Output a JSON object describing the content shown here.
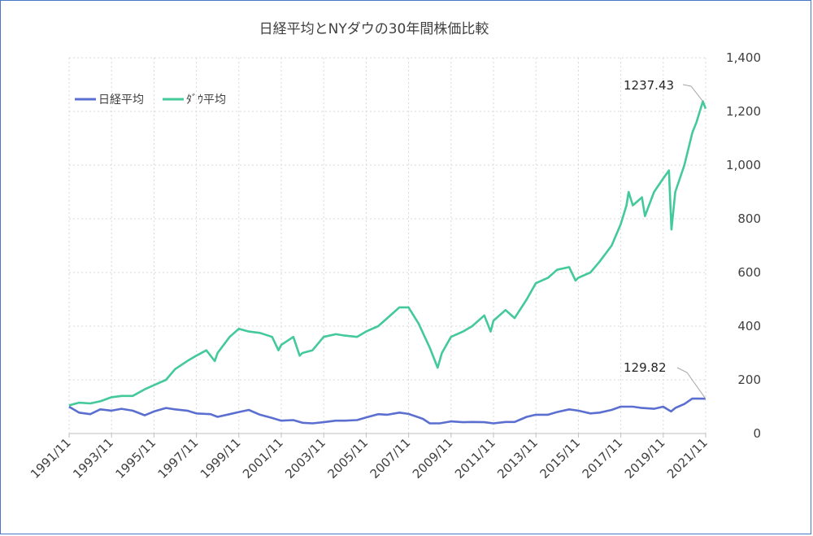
{
  "chart_data": {
    "type": "line",
    "title": "日経平均とNYダウの30年間株価比較",
    "xlabel": "",
    "ylabel": "",
    "ylim": [
      0,
      1400
    ],
    "y_ticks": [
      "0",
      "200",
      "400",
      "600",
      "800",
      "1,000",
      "1,200",
      "1,400"
    ],
    "y_axis_side": "right",
    "x_ticks": [
      "1991/11",
      "1993/11",
      "1995/11",
      "1997/11",
      "1999/11",
      "2001/11",
      "2003/11",
      "2005/11",
      "2007/11",
      "2009/11",
      "2011/11",
      "2013/11",
      "2015/11",
      "2017/11",
      "2019/11",
      "2021/11"
    ],
    "grid": true,
    "legend": "top-left",
    "series": [
      {
        "name": "日経平均",
        "color": "#5b6fd1",
        "x": [
          1991.83,
          1992.3,
          1992.83,
          1993.3,
          1993.83,
          1994.3,
          1994.83,
          1995.4,
          1995.83,
          1996.4,
          1996.83,
          1997.4,
          1997.83,
          1998.5,
          1998.83,
          1999.4,
          1999.83,
          2000.3,
          2000.83,
          2001.4,
          2001.83,
          2002.4,
          2002.83,
          2003.3,
          2003.83,
          2004.4,
          2004.83,
          2005.4,
          2005.83,
          2006.4,
          2006.83,
          2007.4,
          2007.83,
          2008.5,
          2008.83,
          2009.3,
          2009.83,
          2010.4,
          2010.83,
          2011.4,
          2011.83,
          2012.4,
          2012.83,
          2013.4,
          2013.83,
          2014.4,
          2014.83,
          2015.4,
          2015.83,
          2016.4,
          2016.83,
          2017.4,
          2017.83,
          2018.4,
          2018.83,
          2019.4,
          2019.83,
          2020.2,
          2020.4,
          2020.83,
          2021.2,
          2021.4,
          2021.83
        ],
        "values": [
          100,
          78,
          72,
          90,
          85,
          92,
          85,
          68,
          82,
          95,
          90,
          85,
          75,
          72,
          62,
          72,
          80,
          88,
          70,
          58,
          48,
          50,
          40,
          38,
          42,
          48,
          48,
          50,
          60,
          72,
          70,
          78,
          73,
          55,
          38,
          38,
          45,
          42,
          43,
          42,
          38,
          43,
          43,
          62,
          70,
          70,
          80,
          90,
          85,
          75,
          78,
          88,
          100,
          100,
          95,
          92,
          100,
          82,
          95,
          110,
          130,
          130,
          129.82
        ]
      },
      {
        "name": "ﾀﾞｳ平均",
        "color": "#43c99a",
        "x": [
          1991.83,
          1992.3,
          1992.83,
          1993.3,
          1993.83,
          1994.3,
          1994.83,
          1995.4,
          1995.83,
          1996.4,
          1996.83,
          1997.4,
          1997.83,
          1998.3,
          1998.7,
          1998.83,
          1999.4,
          1999.83,
          2000.3,
          2000.83,
          2001.4,
          2001.7,
          2001.83,
          2002.4,
          2002.7,
          2002.83,
          2003.3,
          2003.83,
          2004.4,
          2004.83,
          2005.4,
          2005.83,
          2006.4,
          2006.83,
          2007.4,
          2007.83,
          2008.3,
          2008.83,
          2009.2,
          2009.4,
          2009.83,
          2010.4,
          2010.83,
          2011.4,
          2011.7,
          2011.83,
          2012.4,
          2012.83,
          2013.4,
          2013.83,
          2014.4,
          2014.83,
          2015.4,
          2015.7,
          2015.83,
          2016.4,
          2016.83,
          2017.4,
          2017.83,
          2018.1,
          2018.2,
          2018.4,
          2018.83,
          2018.97,
          2019.4,
          2019.83,
          2020.1,
          2020.22,
          2020.4,
          2020.83,
          2021.2,
          2021.4,
          2021.7,
          2021.83
        ],
        "values": [
          105,
          115,
          112,
          120,
          135,
          140,
          140,
          165,
          180,
          200,
          240,
          270,
          290,
          310,
          270,
          300,
          360,
          390,
          380,
          375,
          360,
          310,
          330,
          360,
          290,
          300,
          310,
          360,
          370,
          365,
          360,
          380,
          400,
          430,
          470,
          470,
          410,
          320,
          245,
          300,
          360,
          380,
          400,
          440,
          380,
          420,
          460,
          430,
          500,
          560,
          580,
          610,
          620,
          570,
          580,
          600,
          640,
          700,
          780,
          850,
          900,
          850,
          880,
          810,
          900,
          950,
          980,
          760,
          900,
          1000,
          1120,
          1160,
          1237.43,
          1210
        ]
      }
    ],
    "annotations": [
      {
        "text": "1237.43",
        "series": "ﾀﾞｳ平均",
        "x": 2021.7,
        "y": 1237.43
      },
      {
        "text": "129.82",
        "series": "日経平均",
        "x": 2021.83,
        "y": 129.82
      }
    ]
  }
}
